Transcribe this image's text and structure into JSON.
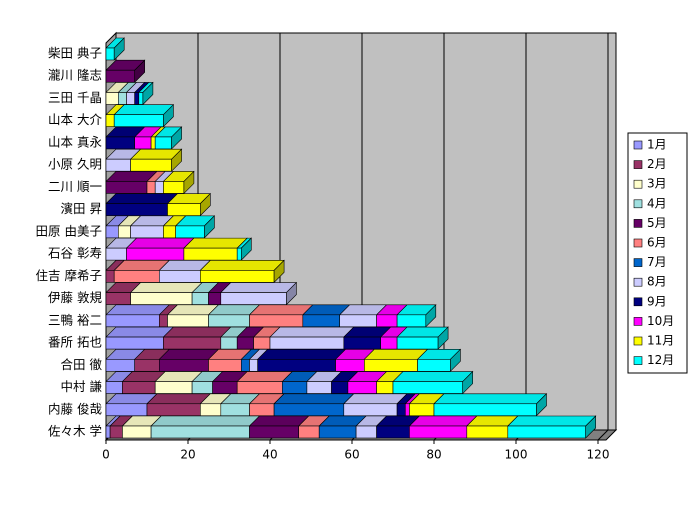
{
  "chart_data": {
    "type": "bar",
    "orientation": "horizontal",
    "stacked": true,
    "categories": [
      "佐々木 学",
      "内藤 俊哉",
      "中村 謙",
      "合田 徹",
      "番所 拓也",
      "三鴨 裕二",
      "伊藤 敦規",
      "住吉 摩希子",
      "石谷 彰寿",
      "田原 由美子",
      "濱田 昇",
      "二川 順一",
      "小原 久明",
      "山本 真永",
      "山本 大介",
      "三田 千晶",
      "瀧川 隆志",
      "柴田 典子"
    ],
    "xlim": [
      0,
      120
    ],
    "xticks": [
      0,
      20,
      40,
      60,
      80,
      100,
      120
    ],
    "grid": true,
    "legend": "right",
    "series": [
      {
        "name": "1月",
        "color": "#9999ff",
        "values": [
          1,
          10,
          4,
          7,
          14,
          13,
          0,
          0,
          0,
          3,
          0,
          0,
          0,
          0,
          0,
          0,
          0,
          0
        ]
      },
      {
        "name": "2月",
        "color": "#993366",
        "values": [
          3,
          13,
          8,
          6,
          14,
          2,
          6,
          2,
          0,
          0,
          0,
          0,
          0,
          0,
          0,
          0,
          0,
          0
        ]
      },
      {
        "name": "3月",
        "color": "#ffffcc",
        "values": [
          7,
          5,
          9,
          0,
          0,
          10,
          15,
          0,
          0,
          3,
          0,
          0,
          0,
          0,
          0,
          3,
          0,
          0
        ]
      },
      {
        "name": "4月",
        "color": "#a0e0e0",
        "values": [
          24,
          7,
          5,
          0,
          4,
          10,
          4,
          0,
          0,
          0,
          0,
          0,
          0,
          0,
          0,
          2,
          0,
          0
        ]
      },
      {
        "name": "5月",
        "color": "#660066",
        "values": [
          12,
          0,
          6,
          12,
          4,
          0,
          3,
          0,
          0,
          0,
          0,
          10,
          0,
          0,
          0,
          0,
          7,
          0
        ]
      },
      {
        "name": "6月",
        "color": "#ff8080",
        "values": [
          5,
          6,
          11,
          8,
          4,
          13,
          0,
          11,
          0,
          0,
          0,
          2,
          0,
          0,
          0,
          0,
          0,
          0
        ]
      },
      {
        "name": "7月",
        "color": "#0066cc",
        "values": [
          9,
          17,
          6,
          2,
          0,
          9,
          0,
          0,
          0,
          0,
          0,
          0,
          0,
          0,
          0,
          0,
          0,
          0
        ]
      },
      {
        "name": "8月",
        "color": "#ccccff",
        "values": [
          5,
          13,
          6,
          2,
          18,
          9,
          16,
          10,
          5,
          8,
          0,
          2,
          6,
          0,
          0,
          2,
          0,
          0
        ]
      },
      {
        "name": "9月",
        "color": "#000080",
        "values": [
          8,
          2,
          4,
          19,
          9,
          0,
          0,
          0,
          0,
          0,
          15,
          0,
          0,
          7,
          0,
          1,
          0,
          0
        ]
      },
      {
        "name": "10月",
        "color": "#ff00ff",
        "values": [
          14,
          1,
          7,
          7,
          4,
          5,
          0,
          0,
          14,
          0,
          0,
          0,
          0,
          4,
          0,
          0,
          0,
          0
        ]
      },
      {
        "name": "11月",
        "color": "#ffff00",
        "values": [
          10,
          6,
          4,
          13,
          0,
          0,
          0,
          18,
          13,
          3,
          8,
          5,
          10,
          1,
          2,
          0,
          0,
          0
        ]
      },
      {
        "name": "12月",
        "color": "#00ffff",
        "values": [
          19,
          25,
          17,
          8,
          10,
          7,
          0,
          0,
          1,
          7,
          0,
          0,
          0,
          4,
          12,
          1,
          0,
          2
        ]
      }
    ]
  }
}
